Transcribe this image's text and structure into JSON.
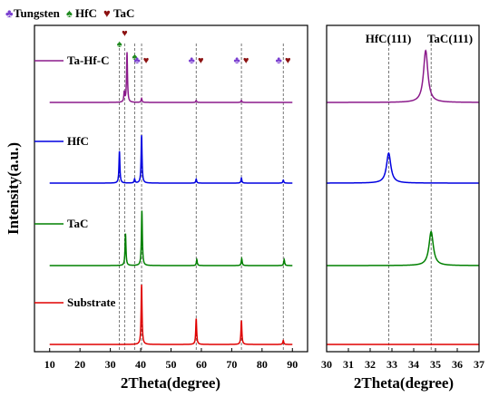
{
  "legend": {
    "items": [
      {
        "name": "Tungsten",
        "icon": "club-icon",
        "glyph": "♣",
        "color": "#7a3fd0"
      },
      {
        "name": "HfC",
        "icon": "spade-icon",
        "glyph": "♠",
        "color": "#1e8a1e"
      },
      {
        "name": "TaC",
        "icon": "heart-icon",
        "glyph": "♥",
        "color": "#8b1010"
      }
    ]
  },
  "chart_data": [
    {
      "type": "line",
      "xlabel": "2Theta(degree)",
      "ylabel": "Intensity(a.u.)",
      "xlim": [
        5,
        95
      ],
      "xticks": [
        10,
        20,
        30,
        40,
        50,
        60,
        70,
        80,
        90
      ],
      "yticks": [],
      "grid": false,
      "series": [
        {
          "name": "Ta-Hf-C",
          "color": "#8b1a8b",
          "peaks": [
            {
              "x": 34.6,
              "h": 10
            },
            {
              "x": 35.5,
              "h": 50
            },
            {
              "x": 40.3,
              "h": 4
            },
            {
              "x": 58.3,
              "h": 2
            },
            {
              "x": 73.2,
              "h": 2
            }
          ]
        },
        {
          "name": "HfC",
          "color": "#0000e0",
          "peaks": [
            {
              "x": 33.0,
              "h": 32
            },
            {
              "x": 38.0,
              "h": 4
            },
            {
              "x": 40.3,
              "h": 48
            },
            {
              "x": 58.3,
              "h": 4
            },
            {
              "x": 73.2,
              "h": 5
            },
            {
              "x": 87.0,
              "h": 3
            }
          ]
        },
        {
          "name": "TaC",
          "color": "#008000",
          "peaks": [
            {
              "x": 35.0,
              "h": 32
            },
            {
              "x": 40.4,
              "h": 55
            },
            {
              "x": 58.5,
              "h": 6
            },
            {
              "x": 73.3,
              "h": 7
            },
            {
              "x": 87.3,
              "h": 6
            }
          ]
        },
        {
          "name": "Substrate",
          "color": "#e00000",
          "peaks": [
            {
              "x": 40.3,
              "h": 60
            },
            {
              "x": 58.3,
              "h": 26
            },
            {
              "x": 73.2,
              "h": 24
            },
            {
              "x": 87.0,
              "h": 4
            }
          ]
        }
      ],
      "markers": [
        {
          "x": 33.0,
          "symbols": [
            "spade"
          ]
        },
        {
          "x": 34.7,
          "symbols": [
            "heart"
          ]
        },
        {
          "x": 38.0,
          "symbols": [
            "spade"
          ]
        },
        {
          "x": 40.3,
          "symbols": [
            "club",
            "heart"
          ]
        },
        {
          "x": 58.3,
          "symbols": [
            "club",
            "heart"
          ]
        },
        {
          "x": 73.2,
          "symbols": [
            "club",
            "heart"
          ]
        },
        {
          "x": 87.0,
          "symbols": [
            "club",
            "heart"
          ]
        }
      ],
      "reference_lines_x": [
        33.0,
        34.7,
        38.0,
        40.3,
        58.3,
        73.2,
        87.0
      ]
    },
    {
      "type": "line",
      "xlabel": "2Theta(degree)",
      "xlim": [
        30,
        37
      ],
      "xticks": [
        30,
        31,
        32,
        33,
        34,
        35,
        36,
        37
      ],
      "grid": false,
      "annotations": [
        "HfC(111)",
        "TaC(111)"
      ],
      "reference_lines_x": [
        32.85,
        34.8
      ],
      "series": [
        {
          "name": "Ta-Hf-C",
          "color": "#8b1a8b",
          "peaks": [
            {
              "x": 34.55,
              "h": 52
            }
          ]
        },
        {
          "name": "HfC",
          "color": "#0000e0",
          "peaks": [
            {
              "x": 32.85,
              "h": 30
            }
          ]
        },
        {
          "name": "TaC",
          "color": "#008000",
          "peaks": [
            {
              "x": 34.8,
              "h": 34
            }
          ]
        },
        {
          "name": "Substrate",
          "color": "#e00000",
          "peaks": []
        }
      ]
    }
  ]
}
